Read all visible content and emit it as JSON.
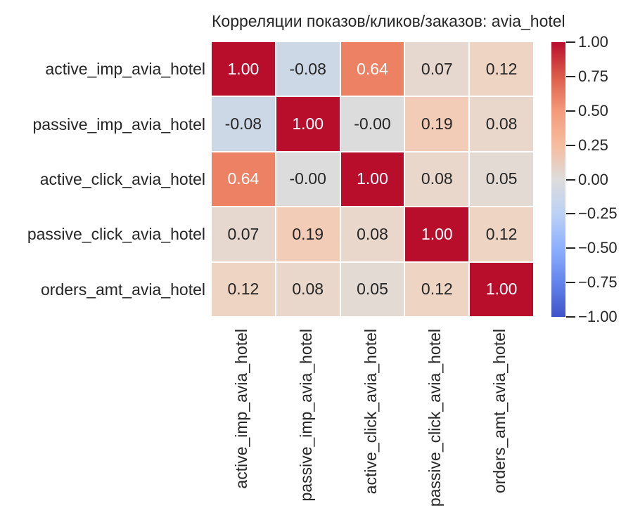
{
  "chart_data": {
    "type": "heatmap",
    "title": "Корреляции показов/кликов/заказов: avia_hotel",
    "labels": [
      "active_imp_avia_hotel",
      "passive_imp_avia_hotel",
      "active_click_avia_hotel",
      "passive_click_avia_hotel",
      "orders_amt_avia_hotel"
    ],
    "matrix": [
      [
        1.0,
        -0.08,
        0.64,
        0.07,
        0.12
      ],
      [
        -0.08,
        1.0,
        -0.0,
        0.19,
        0.08
      ],
      [
        0.64,
        -0.0,
        1.0,
        0.08,
        0.05
      ],
      [
        0.07,
        0.19,
        0.08,
        1.0,
        0.12
      ],
      [
        0.12,
        0.08,
        0.05,
        0.12,
        1.0
      ]
    ],
    "annotations": [
      [
        "1.00",
        "-0.08",
        "0.64",
        "0.07",
        "0.12"
      ],
      [
        "-0.08",
        "1.00",
        "-0.00",
        "0.19",
        "0.08"
      ],
      [
        "0.64",
        "-0.00",
        "1.00",
        "0.08",
        "0.05"
      ],
      [
        "0.07",
        "0.19",
        "0.08",
        "1.00",
        "0.12"
      ],
      [
        "0.12",
        "0.08",
        "0.05",
        "0.12",
        "1.00"
      ]
    ],
    "cell_colors": [
      [
        "#b90d2c",
        "#cdd8e7",
        "#ed8164",
        "#e7d8cf",
        "#eed4c3"
      ],
      [
        "#cdd8e7",
        "#b90d2c",
        "#dddcdc",
        "#f2ccb6",
        "#e9d7cb"
      ],
      [
        "#ed8164",
        "#dddcdc",
        "#b90d2c",
        "#e9d7cb",
        "#e3dad4"
      ],
      [
        "#e7d8cf",
        "#f2ccb6",
        "#e9d7cb",
        "#b90d2c",
        "#eed4c3"
      ],
      [
        "#eed4c3",
        "#e9d7cb",
        "#e3dad4",
        "#eed4c3",
        "#b90d2c"
      ]
    ],
    "cell_text_colors": [
      [
        "#ffffff",
        "#262626",
        "#ffffff",
        "#262626",
        "#262626"
      ],
      [
        "#262626",
        "#ffffff",
        "#262626",
        "#262626",
        "#262626"
      ],
      [
        "#ffffff",
        "#262626",
        "#ffffff",
        "#262626",
        "#262626"
      ],
      [
        "#262626",
        "#262626",
        "#262626",
        "#ffffff",
        "#262626"
      ],
      [
        "#262626",
        "#262626",
        "#262626",
        "#262626",
        "#ffffff"
      ]
    ],
    "grid_line_color": "#ffffff",
    "colormap": {
      "name": "coolwarm",
      "vmin": -1,
      "vmax": 1,
      "gradient_stops": [
        {
          "pos": 0,
          "color": "#b90d2c"
        },
        {
          "pos": 12.5,
          "color": "#dc5c49"
        },
        {
          "pos": 25,
          "color": "#f49a7b"
        },
        {
          "pos": 37.5,
          "color": "#f6bc9f"
        },
        {
          "pos": 50,
          "color": "#dddcdc"
        },
        {
          "pos": 62.5,
          "color": "#bcd1f5"
        },
        {
          "pos": 75,
          "color": "#8db0fe"
        },
        {
          "pos": 87.5,
          "color": "#6384eb"
        },
        {
          "pos": 100,
          "color": "#3f53c9"
        }
      ]
    },
    "colorbar_ticks": [
      {
        "value": 1.0,
        "label": "1.00"
      },
      {
        "value": 0.75,
        "label": "0.75"
      },
      {
        "value": 0.5,
        "label": "0.50"
      },
      {
        "value": 0.25,
        "label": "0.25"
      },
      {
        "value": 0.0,
        "label": "0.00"
      },
      {
        "value": -0.25,
        "label": "−0.25"
      },
      {
        "value": -0.5,
        "label": "−0.50"
      },
      {
        "value": -0.75,
        "label": "−0.75"
      },
      {
        "value": -1.0,
        "label": "−1.00"
      }
    ]
  }
}
